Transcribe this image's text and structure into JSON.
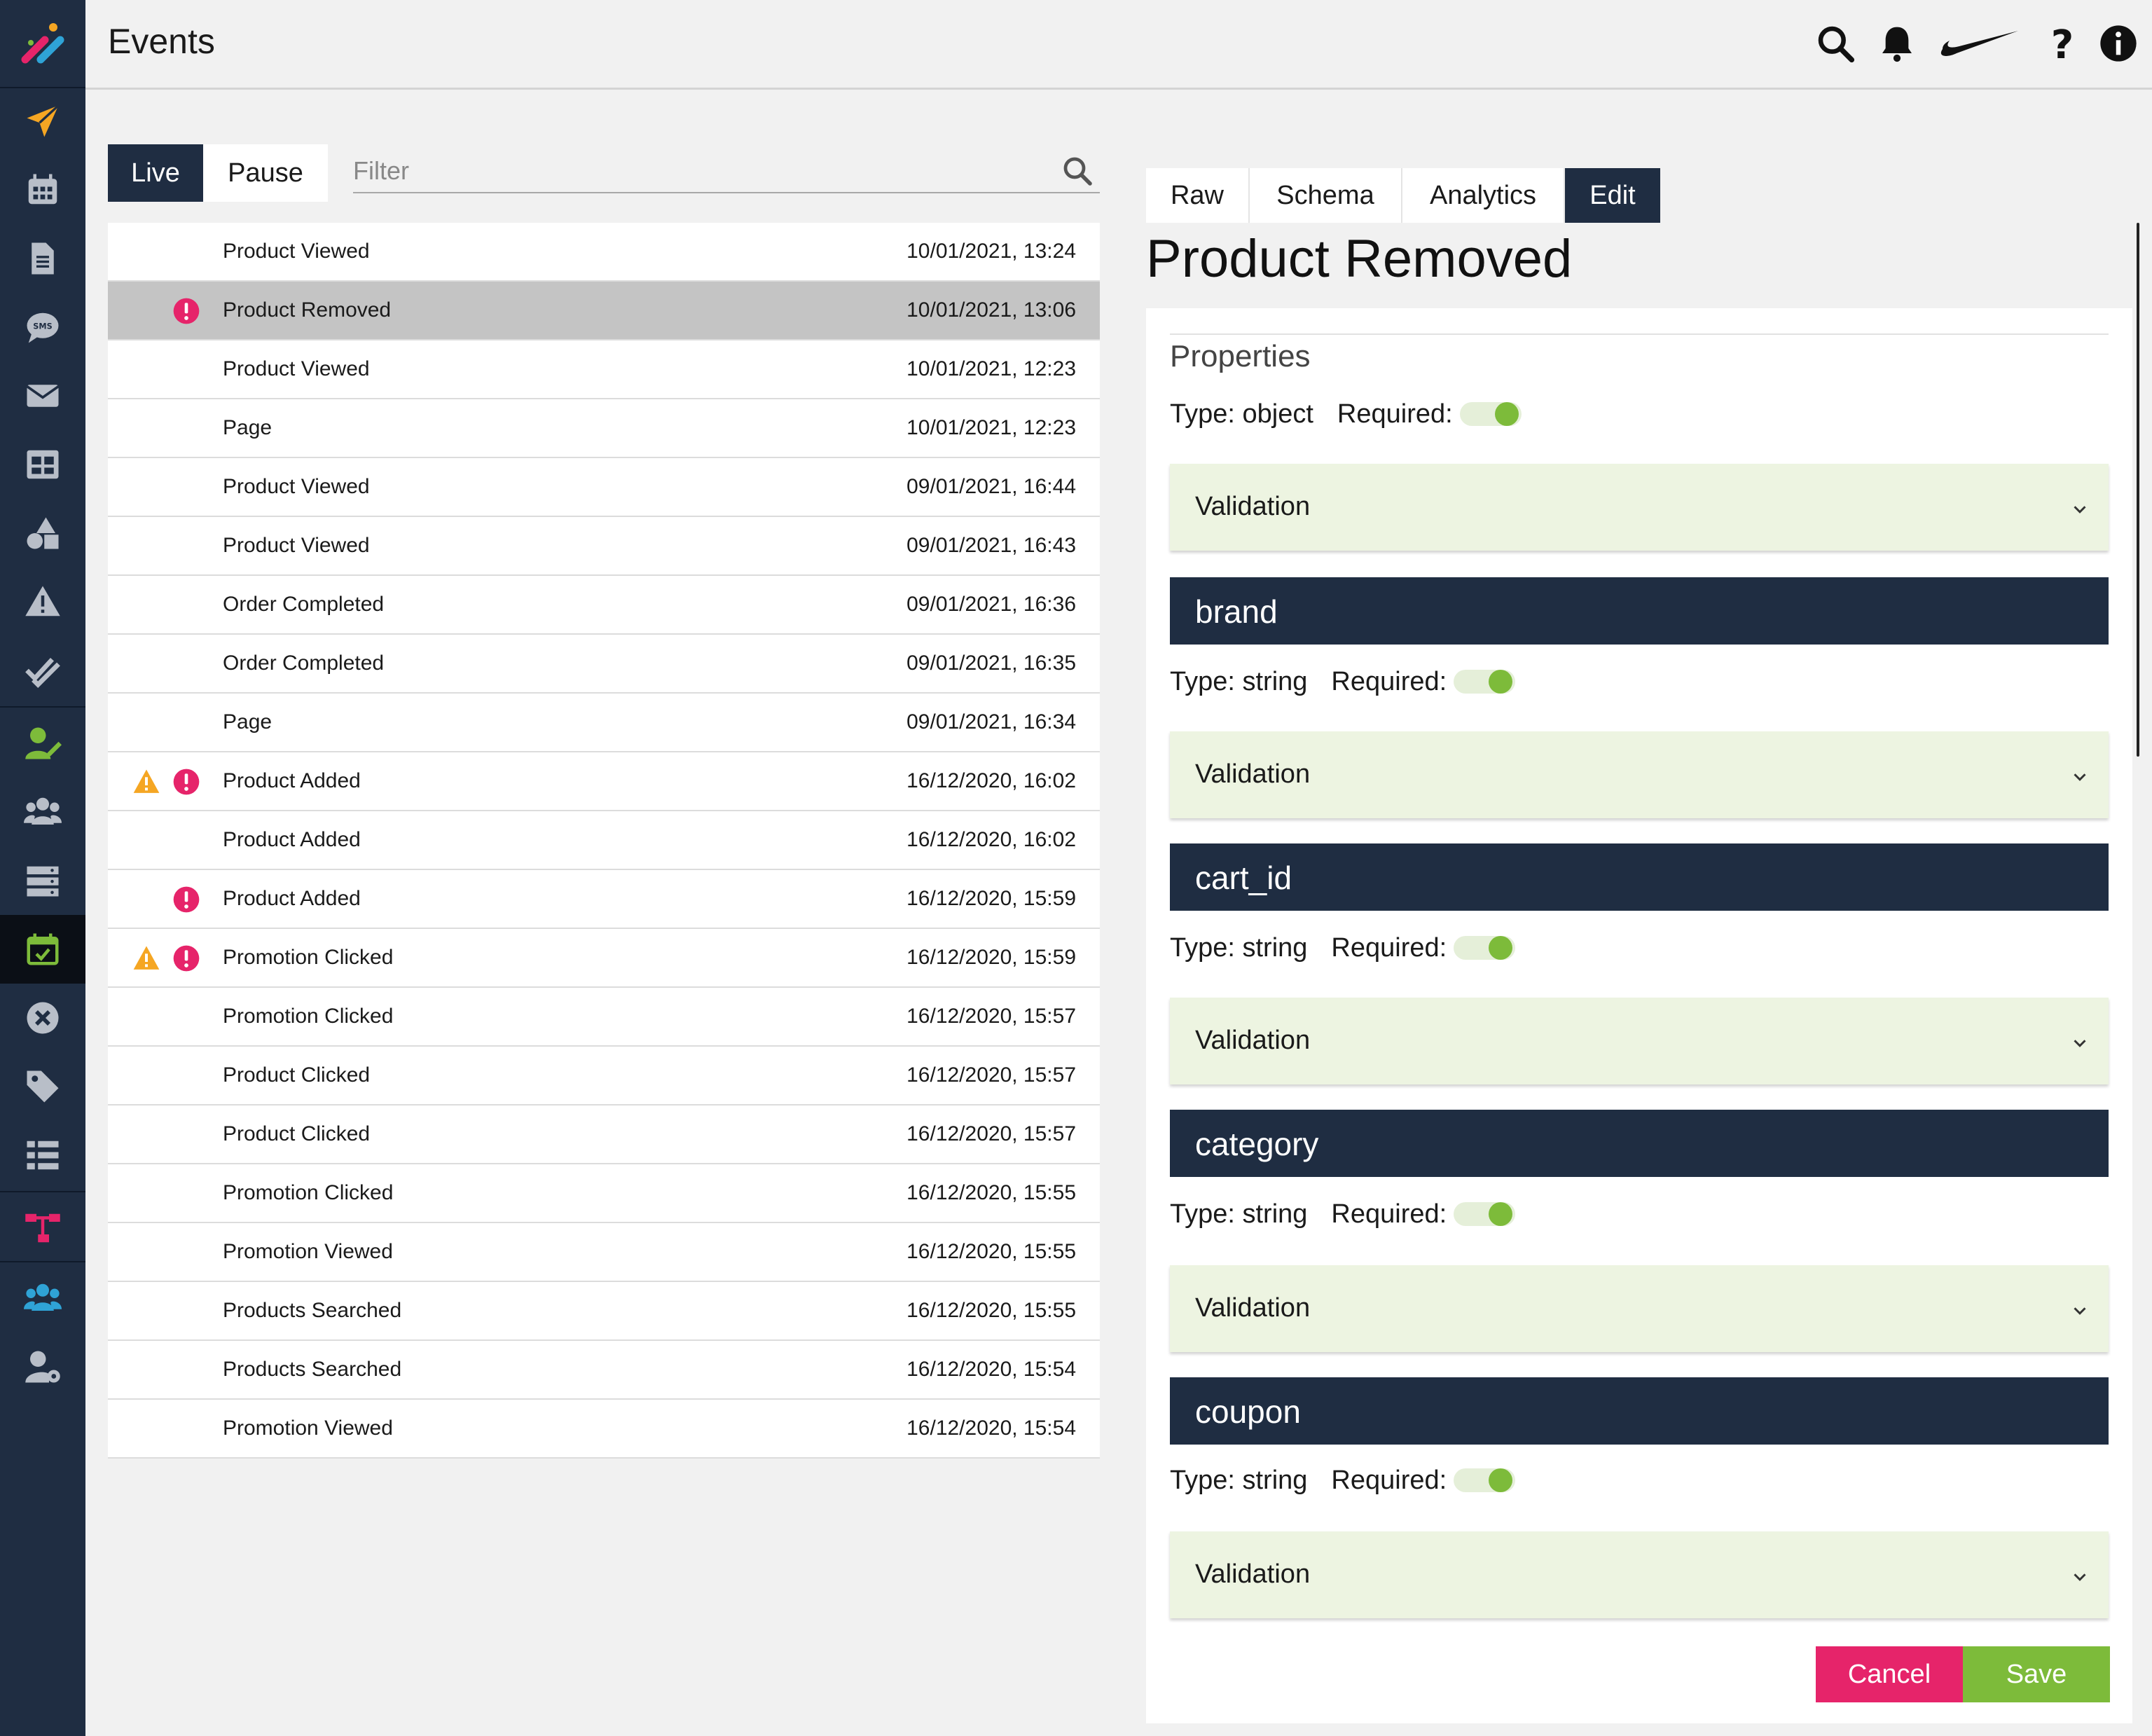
{
  "header": {
    "title": "Events",
    "icons": [
      "search-icon",
      "bell-icon",
      "brand-swoosh-logo",
      "help-icon",
      "info-icon"
    ]
  },
  "sidebar": {
    "items": [
      {
        "name": "campaigns",
        "icon": "paper-plane-icon",
        "color": "#f5a623"
      },
      {
        "name": "calendar",
        "icon": "calendar-icon",
        "color": "#b8bec8"
      },
      {
        "name": "documents",
        "icon": "document-icon",
        "color": "#b8bec8"
      },
      {
        "name": "sms",
        "icon": "sms-icon",
        "color": "#b8bec8"
      },
      {
        "name": "email",
        "icon": "envelope-icon",
        "color": "#b8bec8"
      },
      {
        "name": "tables",
        "icon": "table-icon",
        "color": "#b8bec8"
      },
      {
        "name": "shapes",
        "icon": "shapes-icon",
        "color": "#b8bec8"
      },
      {
        "name": "alerts",
        "icon": "warning-icon",
        "color": "#b8bec8"
      },
      {
        "name": "checks",
        "icon": "double-check-icon",
        "color": "#b8bec8"
      },
      {
        "name": "user-edit",
        "icon": "user-edit-icon",
        "color": "#7dbb3a"
      },
      {
        "name": "audiences",
        "icon": "users-icon",
        "color": "#b8bec8"
      },
      {
        "name": "servers",
        "icon": "server-icon",
        "color": "#b8bec8"
      },
      {
        "name": "events",
        "icon": "calendar-check-icon",
        "color": "#7dbb3a",
        "active": true
      },
      {
        "name": "blocked",
        "icon": "x-circle-icon",
        "color": "#b8bec8"
      },
      {
        "name": "tags",
        "icon": "tag-icon",
        "color": "#b8bec8"
      },
      {
        "name": "list",
        "icon": "list-icon",
        "color": "#b8bec8"
      },
      {
        "name": "sitemap",
        "icon": "sitemap-icon",
        "color": "#e6246a"
      },
      {
        "name": "teams",
        "icon": "users-icon",
        "color": "#2fa3d6"
      },
      {
        "name": "user-settings",
        "icon": "user-cog-icon",
        "color": "#b8bec8"
      }
    ]
  },
  "stream": {
    "live_label": "Live",
    "pause_label": "Pause",
    "filter_placeholder": "Filter"
  },
  "events": [
    {
      "name": "Product Viewed",
      "time": "10/01/2021, 13:24",
      "warn": false,
      "error": false,
      "selected": false
    },
    {
      "name": "Product Removed",
      "time": "10/01/2021, 13:06",
      "warn": false,
      "error": true,
      "selected": true
    },
    {
      "name": "Product Viewed",
      "time": "10/01/2021, 12:23",
      "warn": false,
      "error": false,
      "selected": false
    },
    {
      "name": "Page",
      "time": "10/01/2021, 12:23",
      "warn": false,
      "error": false,
      "selected": false
    },
    {
      "name": "Product Viewed",
      "time": "09/01/2021, 16:44",
      "warn": false,
      "error": false,
      "selected": false
    },
    {
      "name": "Product Viewed",
      "time": "09/01/2021, 16:43",
      "warn": false,
      "error": false,
      "selected": false
    },
    {
      "name": "Order Completed",
      "time": "09/01/2021, 16:36",
      "warn": false,
      "error": false,
      "selected": false
    },
    {
      "name": "Order Completed",
      "time": "09/01/2021, 16:35",
      "warn": false,
      "error": false,
      "selected": false
    },
    {
      "name": "Page",
      "time": "09/01/2021, 16:34",
      "warn": false,
      "error": false,
      "selected": false
    },
    {
      "name": "Product Added",
      "time": "16/12/2020, 16:02",
      "warn": true,
      "error": true,
      "selected": false
    },
    {
      "name": "Product Added",
      "time": "16/12/2020, 16:02",
      "warn": false,
      "error": false,
      "selected": false
    },
    {
      "name": "Product Added",
      "time": "16/12/2020, 15:59",
      "warn": false,
      "error": true,
      "selected": false
    },
    {
      "name": "Promotion Clicked",
      "time": "16/12/2020, 15:59",
      "warn": true,
      "error": true,
      "selected": false
    },
    {
      "name": "Promotion Clicked",
      "time": "16/12/2020, 15:57",
      "warn": false,
      "error": false,
      "selected": false
    },
    {
      "name": "Product Clicked",
      "time": "16/12/2020, 15:57",
      "warn": false,
      "error": false,
      "selected": false
    },
    {
      "name": "Product Clicked",
      "time": "16/12/2020, 15:57",
      "warn": false,
      "error": false,
      "selected": false
    },
    {
      "name": "Promotion Clicked",
      "time": "16/12/2020, 15:55",
      "warn": false,
      "error": false,
      "selected": false
    },
    {
      "name": "Promotion Viewed",
      "time": "16/12/2020, 15:55",
      "warn": false,
      "error": false,
      "selected": false
    },
    {
      "name": "Products Searched",
      "time": "16/12/2020, 15:55",
      "warn": false,
      "error": false,
      "selected": false
    },
    {
      "name": "Products Searched",
      "time": "16/12/2020, 15:54",
      "warn": false,
      "error": false,
      "selected": false
    },
    {
      "name": "Promotion Viewed",
      "time": "16/12/2020, 15:54",
      "warn": false,
      "error": false,
      "selected": false
    }
  ],
  "detail": {
    "tabs": [
      {
        "label": "Raw",
        "active": false
      },
      {
        "label": "Schema",
        "active": false
      },
      {
        "label": "Analytics",
        "active": false
      },
      {
        "label": "Edit",
        "active": true
      }
    ],
    "title": "Product Removed",
    "properties_label": "Properties",
    "root": {
      "type_text": "Type: object",
      "required_label": "Required:",
      "required": true,
      "validation_label": "Validation"
    },
    "fields": [
      {
        "name": "brand",
        "type_text": "Type: string",
        "required_label": "Required:",
        "required": true,
        "validation_label": "Validation"
      },
      {
        "name": "cart_id",
        "type_text": "Type: string",
        "required_label": "Required:",
        "required": true,
        "validation_label": "Validation"
      },
      {
        "name": "category",
        "type_text": "Type: string",
        "required_label": "Required:",
        "required": true,
        "validation_label": "Validation"
      },
      {
        "name": "coupon",
        "type_text": "Type: string",
        "required_label": "Required:",
        "required": true,
        "validation_label": "Validation"
      }
    ],
    "cancel_label": "Cancel",
    "save_label": "Save"
  },
  "colors": {
    "navy": "#1f2d42",
    "green": "#7dbb3a",
    "pink": "#e6246a",
    "warning": "#f5a623",
    "validation_bg": "#edf4e1"
  }
}
